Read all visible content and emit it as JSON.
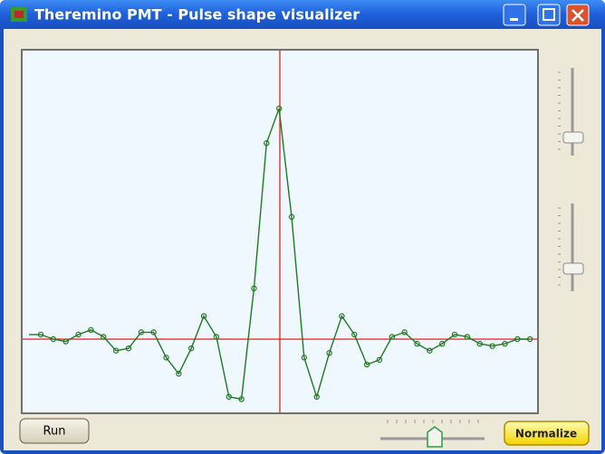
{
  "window": {
    "title": "Theremino PMT - Pulse shape visualizer"
  },
  "buttons": {
    "run": "Run",
    "normalize": "Normalize"
  },
  "waveform": {
    "type": "line",
    "color": "#1f7a1f",
    "values": [
      2,
      0,
      -1,
      2,
      4,
      1,
      -5,
      -4,
      3,
      3,
      -8,
      -15,
      -4,
      10,
      1,
      -25,
      -26,
      22,
      85,
      100,
      53,
      -8,
      -25,
      -6,
      10,
      2,
      -11,
      -9,
      1,
      3,
      -2,
      -5,
      -2,
      2,
      1,
      -2,
      -3,
      -2,
      0,
      0
    ]
  }
}
